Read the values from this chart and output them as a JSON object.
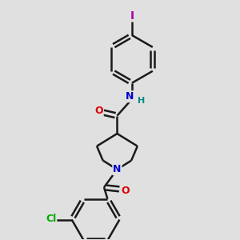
{
  "background_color": "#e0e0e0",
  "bond_color": "#1a1a1a",
  "bond_width": 1.8,
  "atom_colors": {
    "O": "#dd0000",
    "N": "#0000cc",
    "H": "#008888",
    "Cl": "#00aa00",
    "I": "#aa00aa"
  },
  "figsize": [
    3.0,
    3.0
  ],
  "dpi": 100,
  "xlim": [
    0,
    10
  ],
  "ylim": [
    0,
    10
  ]
}
